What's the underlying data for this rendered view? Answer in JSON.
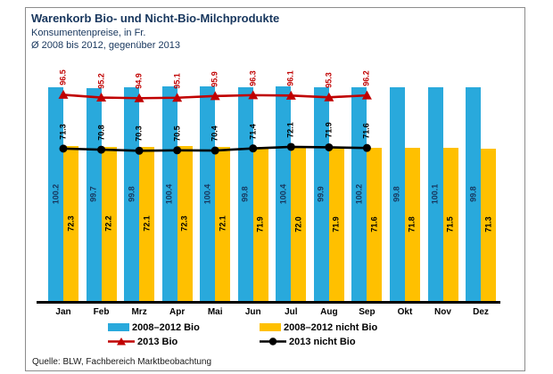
{
  "header": {
    "title": "Warenkorb Bio- und Nicht-Bio-Milchprodukte",
    "subtitle1": "Konsumentenpreise, in Fr.",
    "subtitle2": "Ø 2008 bis 2012, gegenüber 2013"
  },
  "source": "Quelle: BLW, Fachbereich Marktbeobachtung",
  "colors": {
    "bar_bio": "#29a9dc",
    "bar_nicht_bio": "#ffc000",
    "line_bio_2013": "#c00000",
    "line_nicht_bio_2013": "#000000",
    "bar_bio_label": "#17365d",
    "bar_nicht_bio_label": "#000000",
    "title_text": "#17365d"
  },
  "chart_data": {
    "type": "bar",
    "subtype": "bar+line combo",
    "categories": [
      "Jan",
      "Feb",
      "Mrz",
      "Apr",
      "Mai",
      "Jun",
      "Jul",
      "Aug",
      "Sep",
      "Okt",
      "Nov",
      "Dez"
    ],
    "series": [
      {
        "name": "2008–2012 Bio",
        "type": "bar",
        "color": "#29a9dc",
        "label_color": "#17365d",
        "values": [
          100.2,
          99.7,
          99.8,
          100.4,
          100.4,
          99.8,
          100.4,
          99.9,
          100.2,
          99.8,
          100.1,
          99.8
        ]
      },
      {
        "name": "2008–2012 nicht Bio",
        "type": "bar",
        "color": "#ffc000",
        "label_color": "#000000",
        "values": [
          72.3,
          72.2,
          72.1,
          72.3,
          72.1,
          71.9,
          72.0,
          71.9,
          71.6,
          71.8,
          71.5,
          71.3
        ]
      },
      {
        "name": "2013 Bio",
        "type": "line",
        "marker": "triangle",
        "color": "#c00000",
        "label_color": "#c00000",
        "values": [
          96.5,
          95.2,
          94.9,
          95.1,
          95.9,
          96.3,
          96.1,
          95.3,
          96.2,
          null,
          null,
          null
        ]
      },
      {
        "name": "2013 nicht Bio",
        "type": "line",
        "marker": "circle",
        "color": "#000000",
        "label_color": "#000000",
        "values": [
          71.3,
          70.8,
          70.3,
          70.5,
          70.4,
          71.4,
          72.1,
          71.9,
          71.6,
          null,
          null,
          null
        ]
      }
    ],
    "title": "Warenkorb Bio- und Nicht-Bio-Milchprodukte",
    "xlabel": "",
    "ylabel": "",
    "ylim": [
      0,
      112
    ],
    "grid": false,
    "y_axis_shown": false,
    "legend_position": "bottom",
    "value_labels": "rotated 90°, bars: inside center; lines: above point"
  }
}
